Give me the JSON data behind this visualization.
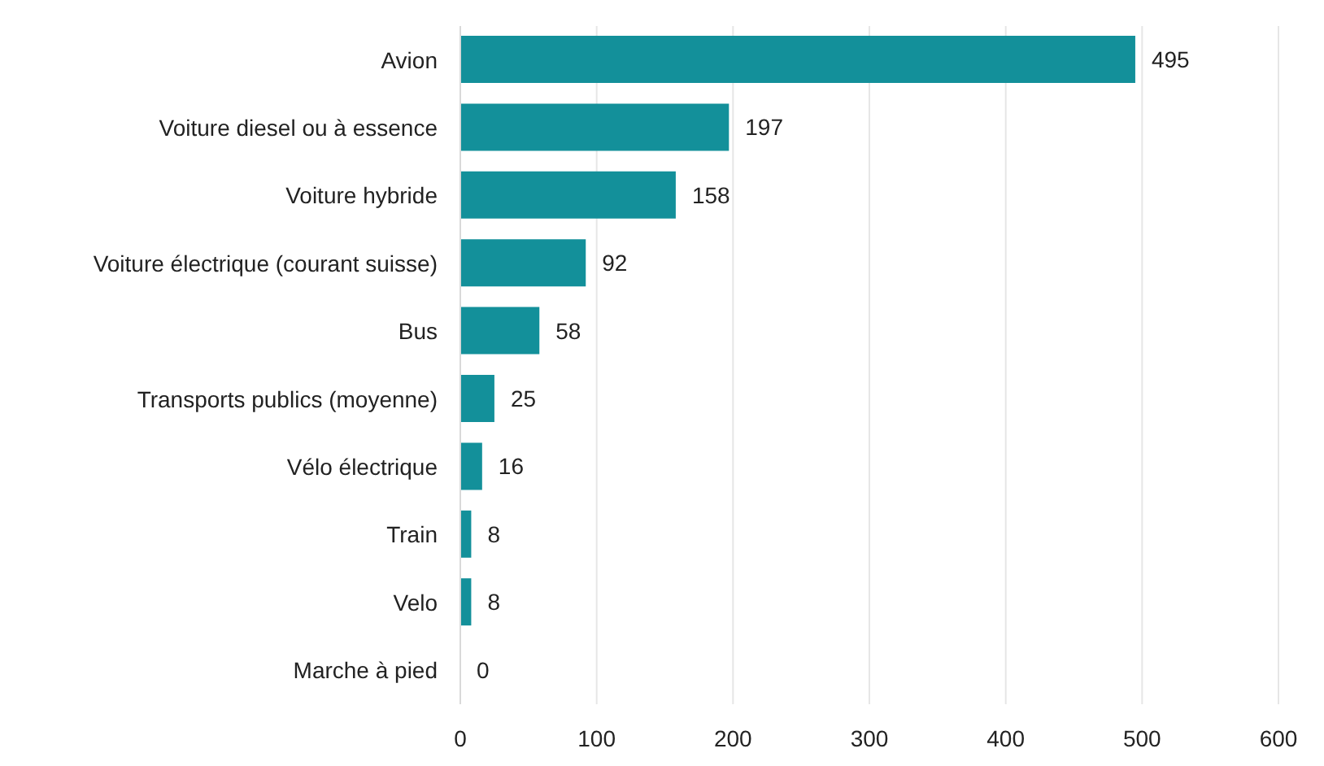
{
  "chart_data": {
    "type": "bar",
    "orientation": "horizontal",
    "categories": [
      "Avion",
      "Voiture diesel ou à essence",
      "Voiture hybride",
      "Voiture électrique (courant suisse)",
      "Bus",
      "Transports publics (moyenne)",
      "Vélo électrique",
      "Train",
      "Velo",
      "Marche à pied"
    ],
    "values": [
      495,
      197,
      158,
      92,
      58,
      25,
      16,
      8,
      8,
      0
    ],
    "color": "#13909a",
    "xlim": [
      0,
      600
    ],
    "xticks": [
      0,
      100,
      200,
      300,
      400,
      500,
      600
    ],
    "grid": "x",
    "data_labels": true
  }
}
